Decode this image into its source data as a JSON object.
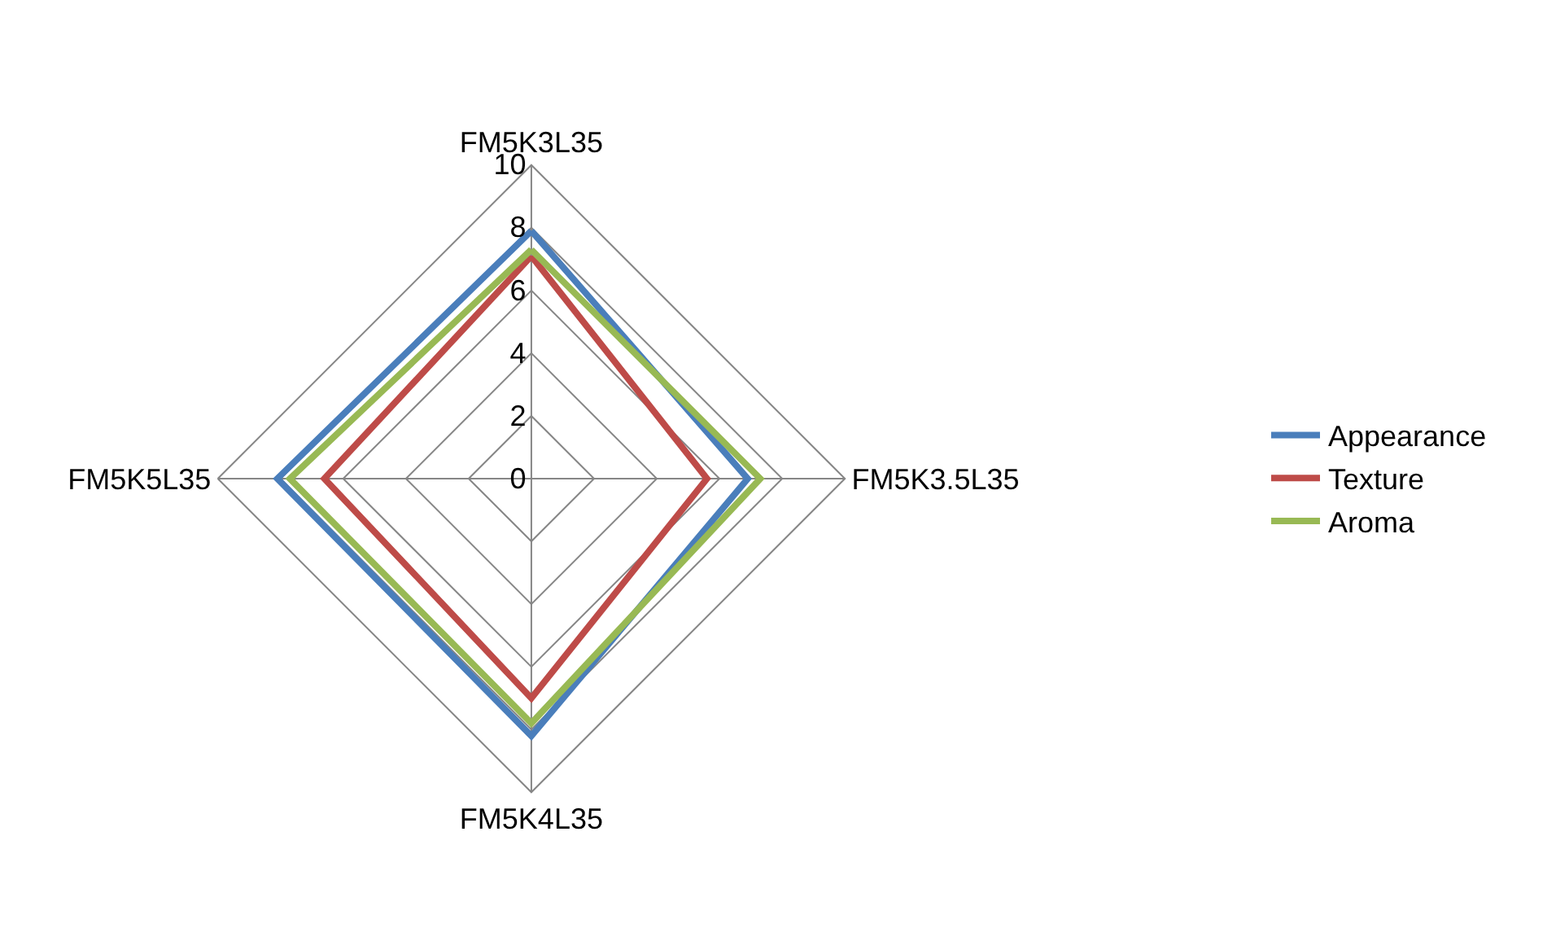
{
  "chart_data": {
    "type": "radar",
    "categories": [
      "FM5K3L35",
      "FM5K3.5L35",
      "FM5K4L35",
      "FM5K5L35"
    ],
    "series": [
      {
        "name": "Appearance",
        "color": "#4a7ebb",
        "values": [
          7.9,
          6.9,
          8.2,
          8.1
        ]
      },
      {
        "name": "Texture",
        "color": "#be4b48",
        "values": [
          7.1,
          5.6,
          7.0,
          6.6
        ]
      },
      {
        "name": "Aroma",
        "color": "#98b954",
        "values": [
          7.3,
          7.3,
          7.8,
          7.7
        ]
      }
    ],
    "ylim": [
      0,
      10
    ],
    "yticks": [
      0,
      2,
      4,
      6,
      8,
      10
    ],
    "grid": true,
    "legend": "right",
    "marker": "none",
    "line_style": "solid"
  }
}
